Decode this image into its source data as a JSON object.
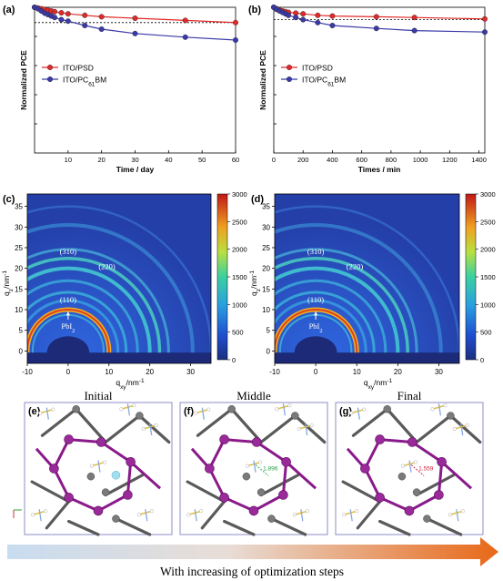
{
  "chart_data": [
    {
      "panel": "(a)",
      "type": "line",
      "xlabel": "Time / day",
      "ylabel": "Normalized PCE",
      "xlim": [
        0,
        60
      ],
      "ylim": [
        0,
        1.0
      ],
      "xticks": [
        10,
        20,
        30,
        40,
        50,
        60
      ],
      "reference_line": 0.895,
      "series": [
        {
          "name": "ITO/PSD",
          "color": "#e02a2a",
          "x": [
            0,
            1,
            2,
            3,
            4,
            5,
            6,
            8,
            10,
            15,
            20,
            30,
            45,
            60
          ],
          "y": [
            1.0,
            0.995,
            0.99,
            0.985,
            0.98,
            0.975,
            0.97,
            0.962,
            0.955,
            0.945,
            0.935,
            0.925,
            0.91,
            0.895
          ]
        },
        {
          "name_parts": [
            "ITO/PC",
            "61",
            "BM"
          ],
          "color": "#3a3aa8",
          "x": [
            0,
            1,
            2,
            3,
            4,
            5,
            6,
            8,
            10,
            15,
            20,
            30,
            45,
            60
          ],
          "y": [
            1.0,
            0.99,
            0.975,
            0.96,
            0.95,
            0.94,
            0.93,
            0.915,
            0.905,
            0.875,
            0.85,
            0.82,
            0.795,
            0.775
          ]
        }
      ]
    },
    {
      "panel": "(b)",
      "type": "line",
      "xlabel": "Times / min",
      "ylabel": "Normalized PCE",
      "xlim": [
        0,
        1440
      ],
      "ylim": [
        0,
        1.0
      ],
      "xticks": [
        0,
        200,
        400,
        600,
        800,
        1000,
        1200,
        1400
      ],
      "reference_line": 0.915,
      "series": [
        {
          "name": "ITO/PSD",
          "color": "#e02a2a",
          "x": [
            0,
            20,
            40,
            60,
            80,
            100,
            150,
            200,
            300,
            400,
            700,
            960,
            1440
          ],
          "y": [
            1.0,
            0.99,
            0.98,
            0.975,
            0.97,
            0.965,
            0.96,
            0.955,
            0.945,
            0.94,
            0.935,
            0.93,
            0.92
          ]
        },
        {
          "name_parts": [
            "ITO/PC",
            "61",
            "BM"
          ],
          "color": "#3a3aa8",
          "x": [
            0,
            20,
            40,
            60,
            80,
            100,
            150,
            200,
            300,
            400,
            700,
            960,
            1440
          ],
          "y": [
            1.0,
            0.985,
            0.975,
            0.965,
            0.955,
            0.945,
            0.93,
            0.915,
            0.895,
            0.875,
            0.855,
            0.84,
            0.83
          ]
        }
      ]
    },
    {
      "panel": "(c)",
      "type": "heatmap",
      "xlabel_parts": [
        "q",
        "xy",
        "/nm",
        "-1"
      ],
      "ylabel_parts": [
        "q",
        "z",
        "/nm",
        "-1"
      ],
      "xlim": [
        -10,
        35
      ],
      "ylim": [
        -3,
        38
      ],
      "xticks": [
        -10,
        0,
        10,
        20,
        30
      ],
      "yticks": [
        0,
        5,
        10,
        15,
        20,
        25,
        30,
        35
      ],
      "colorbar_ticks": [
        0,
        500,
        1000,
        1500,
        2000,
        2500,
        3000
      ],
      "rings": [
        {
          "label": "(110)",
          "q": 10
        },
        {
          "label": "(220)",
          "q": 20
        },
        {
          "label": "(310)",
          "q": 22.4
        }
      ],
      "annotation_parts": [
        "PbI",
        "2"
      ]
    },
    {
      "panel": "(d)",
      "type": "heatmap",
      "xlabel_parts": [
        "q",
        "xy",
        "/nm",
        "-1"
      ],
      "ylabel_parts": [
        "q",
        "z",
        "/nm",
        "-1"
      ],
      "xlim": [
        -10,
        35
      ],
      "ylim": [
        -3,
        38
      ],
      "xticks": [
        -10,
        0,
        10,
        20,
        30
      ],
      "yticks": [
        0,
        5,
        10,
        15,
        20,
        25,
        30,
        35
      ],
      "colorbar_ticks": [
        0,
        500,
        1000,
        1500,
        2000,
        2500,
        3000
      ],
      "rings": [
        {
          "label": "(110)",
          "q": 10
        },
        {
          "label": "(220)",
          "q": 20
        },
        {
          "label": "(310)",
          "q": 22.4
        }
      ],
      "annotation_parts": [
        "PbI",
        "2"
      ]
    }
  ],
  "panel_labels": {
    "a": "(a)",
    "b": "(b)",
    "c": "(c)",
    "d": "(d)",
    "e": "(e)",
    "f": "(f)",
    "g": "(g)"
  },
  "structures": [
    {
      "title": "Initial",
      "panel": "(e)",
      "distance": ""
    },
    {
      "title": "Middle",
      "panel": "(f)",
      "distance": "1.896"
    },
    {
      "title": "Final",
      "panel": "(g)",
      "distance": "1.559"
    }
  ],
  "arrow_caption": "With increasing of optimization steps",
  "colors": {
    "psd": "#e02a2a",
    "pcbm": "#3a3aa8",
    "frame": "#8e8ec9",
    "pb": "#8a1a8a",
    "i": "#5a5a5a"
  }
}
